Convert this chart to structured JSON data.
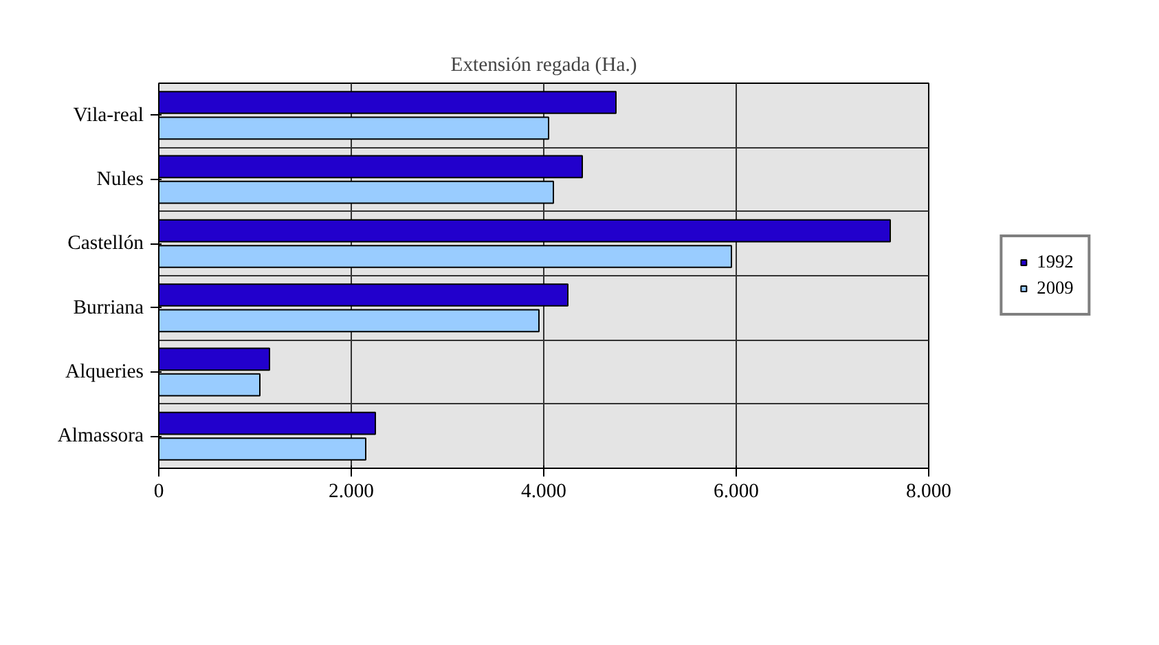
{
  "chart_data": {
    "type": "bar",
    "orientation": "horizontal",
    "title": "Extensión regada (Ha.)",
    "categories": [
      "Vila-real",
      "Nules",
      "Castellón",
      "Burriana",
      "Alqueries",
      "Almassora"
    ],
    "series": [
      {
        "name": "1992",
        "color": "#2200cc",
        "values": [
          4750,
          4400,
          7600,
          4250,
          1150,
          2250
        ]
      },
      {
        "name": "2009",
        "color": "#99ccff",
        "values": [
          4050,
          4100,
          5950,
          3950,
          1050,
          2150
        ]
      }
    ],
    "xlim": [
      0,
      8000
    ],
    "xticks": [
      {
        "value": 0,
        "label": "0"
      },
      {
        "value": 2000,
        "label": "2.000"
      },
      {
        "value": 4000,
        "label": "4.000"
      },
      {
        "value": 6000,
        "label": "6.000"
      },
      {
        "value": 8000,
        "label": "8.000"
      }
    ],
    "grid": "x",
    "legend": "right"
  }
}
